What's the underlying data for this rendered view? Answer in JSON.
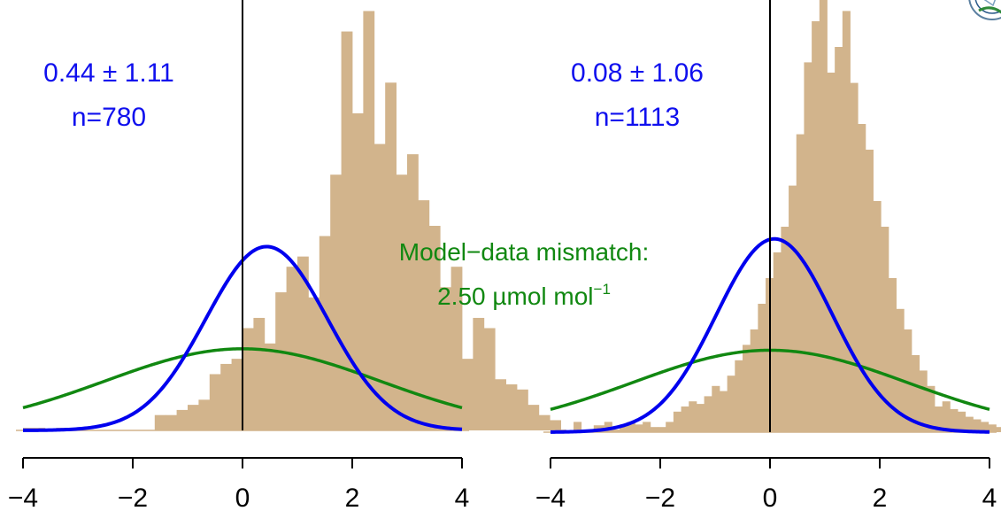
{
  "chart_data": [
    {
      "type": "histogram",
      "panel": "left",
      "stats_text": "0.44 ± 1.11",
      "n_text": "n=780",
      "mean": 0.44,
      "sd": 1.11,
      "n": 780,
      "xlim": [
        -4,
        4
      ],
      "x_ticks": [
        "−4",
        "−2",
        "0",
        "2",
        "4"
      ],
      "bins": {
        "start": -4.0,
        "width": 0.2,
        "density": [
          0.005,
          0.005,
          0.0,
          0.005,
          0.005,
          0.0,
          0.0,
          0.0,
          0.0,
          0.0,
          0.0,
          0.0,
          0.03,
          0.03,
          0.04,
          0.05,
          0.06,
          0.11,
          0.13,
          0.14,
          0.2,
          0.22,
          0.17,
          0.27,
          0.32,
          0.34,
          0.26,
          0.38,
          0.5,
          0.78,
          0.62,
          0.82,
          0.56,
          0.68,
          0.5,
          0.54,
          0.45,
          0.4,
          0.28,
          0.32,
          0.14,
          0.22,
          0.2,
          0.1,
          0.09,
          0.08,
          0.05,
          0.03,
          0.02,
          0.0,
          0.0,
          0.0,
          0.01,
          0.0,
          0.0,
          0.0,
          0.0,
          0.0,
          0.0,
          0.0
        ]
      }
    },
    {
      "type": "histogram",
      "panel": "right",
      "stats_text": "0.08 ± 1.06",
      "n_text": "n=1113",
      "mean": 0.08,
      "sd": 1.06,
      "n": 1113,
      "xlim": [
        -4,
        4
      ],
      "x_ticks": [
        "−4",
        "−2",
        "0",
        "2",
        "4"
      ],
      "bins": {
        "start": -4.0,
        "width": 0.14,
        "density": [
          0.005,
          0.005,
          0.0,
          0.02,
          0.005,
          0.005,
          0.01,
          0.02,
          0.005,
          0.015,
          0.02,
          0.015,
          0.02,
          0.01,
          0.01,
          0.02,
          0.04,
          0.05,
          0.06,
          0.055,
          0.07,
          0.09,
          0.08,
          0.11,
          0.14,
          0.17,
          0.2,
          0.25,
          0.3,
          0.35,
          0.4,
          0.48,
          0.58,
          0.72,
          0.8,
          0.86,
          0.7,
          0.75,
          0.82,
          0.68,
          0.6,
          0.55,
          0.45,
          0.4,
          0.3,
          0.24,
          0.2,
          0.15,
          0.12,
          0.09,
          0.05,
          0.06,
          0.045,
          0.04,
          0.03,
          0.025,
          0.02,
          0.015,
          0.01,
          0.005
        ]
      }
    }
  ],
  "mismatch": {
    "label": "Model−data mismatch:",
    "value_text": "2.50 µmol mol",
    "value_sup": "−1",
    "sd": 2.5
  },
  "colors": {
    "histogram_fill": "#d2b48c",
    "fit_curve": "#0000ee",
    "mismatch_curve": "#118811",
    "stats_text": "#1010ee",
    "mismatch_text": "#118811",
    "axis": "#000000"
  },
  "icons": {
    "corner_logo": "logo-icon"
  }
}
